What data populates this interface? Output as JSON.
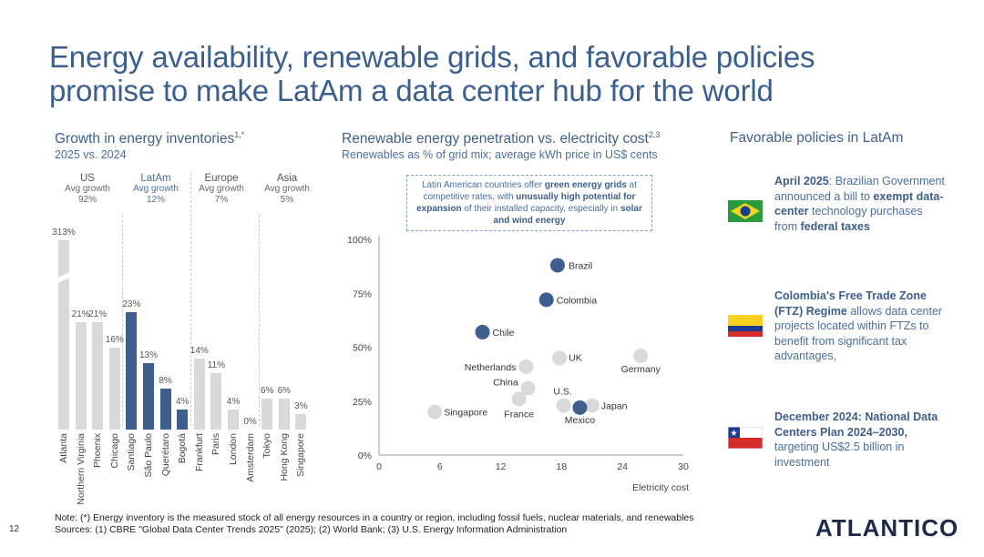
{
  "title": "Energy availability, renewable grids, and favorable policies promise to make LatAm a data center hub for the world",
  "growth": {
    "title": "Growth in energy inventories",
    "title_sup": "1,*",
    "subtitle": "2025 vs. 2024",
    "regions": [
      {
        "name": "US",
        "label": "Avg growth",
        "value": "92%"
      },
      {
        "name": "LatAm",
        "label": "Avg growth",
        "value": "12%"
      },
      {
        "name": "Europe",
        "label": "Avg growth",
        "value": "7%"
      },
      {
        "name": "Asia",
        "label": "Avg growth",
        "value": "5%"
      }
    ],
    "bars": [
      {
        "city": "Atlanta",
        "value": 313,
        "label": "313%",
        "region": "US"
      },
      {
        "city": "Northern Virginia",
        "value": 21,
        "label": "21%",
        "region": "US"
      },
      {
        "city": "Phoenix",
        "value": 21,
        "label": "21%",
        "region": "US"
      },
      {
        "city": "Chicago",
        "value": 16,
        "label": "16%",
        "region": "US"
      },
      {
        "city": "Santiago",
        "value": 23,
        "label": "23%",
        "region": "LatAm"
      },
      {
        "city": "São Paulo",
        "value": 13,
        "label": "13%",
        "region": "LatAm"
      },
      {
        "city": "Querétaro",
        "value": 8,
        "label": "8%",
        "region": "LatAm"
      },
      {
        "city": "Bogotá",
        "value": 4,
        "label": "4%",
        "region": "LatAm"
      },
      {
        "city": "Frankfurt",
        "value": 14,
        "label": "14%",
        "region": "Europe"
      },
      {
        "city": "Paris",
        "value": 11,
        "label": "11%",
        "region": "Europe"
      },
      {
        "city": "London",
        "value": 4,
        "label": "4%",
        "region": "Europe"
      },
      {
        "city": "Amsterdam",
        "value": 0,
        "label": "0%",
        "region": "Europe"
      },
      {
        "city": "Tokyo",
        "value": 6,
        "label": "6%",
        "region": "Asia"
      },
      {
        "city": "Hong Kong",
        "value": 6,
        "label": "6%",
        "region": "Asia"
      },
      {
        "city": "Singapore",
        "value": 3,
        "label": "3%",
        "region": "Asia"
      }
    ]
  },
  "renewables": {
    "title": "Renewable energy penetration vs. electricity cost",
    "title_sup": "2,3",
    "subtitle": "Renewables as % of grid mix; average kWh price in US$ cents",
    "callout": {
      "p1": "Latin American countries offer ",
      "b1": "green energy grids",
      "p2": " at competitive rates, with ",
      "b2": "unusually high potential for expansion",
      "p3": " of their installed capacity, especially in ",
      "b3": "solar and wind energy"
    }
  },
  "chart_data": [
    {
      "type": "bar",
      "title": "Growth in energy inventories",
      "subtitle": "2025 vs. 2024",
      "categories": [
        "Atlanta",
        "Northern Virginia",
        "Phoenix",
        "Chicago",
        "Santiago",
        "São Paulo",
        "Querétaro",
        "Bogotá",
        "Frankfurt",
        "Paris",
        "London",
        "Amsterdam",
        "Tokyo",
        "Hong Kong",
        "Singapore"
      ],
      "values": [
        313,
        21,
        21,
        16,
        23,
        13,
        8,
        4,
        14,
        11,
        4,
        0,
        6,
        6,
        3
      ],
      "groups": {
        "US": "92%",
        "LatAm": "12%",
        "Europe": "7%",
        "Asia": "5%"
      },
      "highlight_color": "#3e5f8e",
      "base_color": "#d9d9d9"
    },
    {
      "type": "scatter",
      "title": "Renewable energy penetration vs. electricity cost",
      "xlabel": "Eletricity cost",
      "ylabel": "",
      "xlim": [
        0,
        30
      ],
      "ylim": [
        0,
        100
      ],
      "xticks": [
        "0",
        "6",
        "12",
        "18",
        "24",
        "30"
      ],
      "yticks": [
        "0%",
        "25%",
        "50%",
        "75%",
        "100%"
      ],
      "points": [
        {
          "name": "Brazil",
          "x": 17.6,
          "y": 88,
          "highlight": true
        },
        {
          "name": "Colombia",
          "x": 16.5,
          "y": 72,
          "highlight": true
        },
        {
          "name": "Chile",
          "x": 10.2,
          "y": 57,
          "highlight": true
        },
        {
          "name": "Mexico",
          "x": 19.8,
          "y": 22,
          "highlight": true
        },
        {
          "name": "Germany",
          "x": 25.8,
          "y": 46,
          "highlight": false
        },
        {
          "name": "UK",
          "x": 17.8,
          "y": 45,
          "highlight": false
        },
        {
          "name": "Netherlands",
          "x": 14.5,
          "y": 41,
          "highlight": false
        },
        {
          "name": "China",
          "x": 14.7,
          "y": 31,
          "highlight": false
        },
        {
          "name": "France",
          "x": 13.8,
          "y": 26,
          "highlight": false
        },
        {
          "name": "U.S.",
          "x": 18.2,
          "y": 23,
          "highlight": false
        },
        {
          "name": "Japan",
          "x": 21.0,
          "y": 23,
          "highlight": false
        },
        {
          "name": "Singapore",
          "x": 5.5,
          "y": 20,
          "highlight": false
        }
      ],
      "highlight_color": "#3e5f8e",
      "base_color": "#d9d9d9"
    }
  ],
  "policies": {
    "title": "Favorable policies in LatAm",
    "items": [
      {
        "flag": "brazil-flag",
        "lead": "April 2025",
        "t1": ": Brazilian Government announced a bill to ",
        "b1": "exempt data-center",
        "t2": " technology purchases from ",
        "b2": "federal taxes",
        "t3": ""
      },
      {
        "flag": "colombia-flag",
        "lead": "Colombia's Free Trade Zone (FTZ) Regime",
        "t1": " allows data center projects located within FTZs to benefit from significant tax advantages,",
        "b1": "",
        "t2": "",
        "b2": "",
        "t3": ""
      },
      {
        "flag": "chile-flag",
        "lead": "December 2024: National Data Centers Plan 2024–2030,",
        "t1": " targeting US$2.5 billion in investment",
        "b1": "",
        "t2": "",
        "b2": "",
        "t3": ""
      }
    ]
  },
  "note": "Note: (*) Energy inventory is the measured stock of all energy resources in a country or region, including fossil fuels, nuclear materials, and renewables",
  "sources": "Sources: (1) CBRE \"Global Data Center Trends 2025\" (2025); (2) World Bank; (3) U.S. Energy Information Administration",
  "page_number": "12",
  "logo": "ATLANTICO",
  "colors": {
    "title": "#3a5f8d",
    "highlight": "#3e5f8e",
    "gray": "#d9d9d9"
  }
}
